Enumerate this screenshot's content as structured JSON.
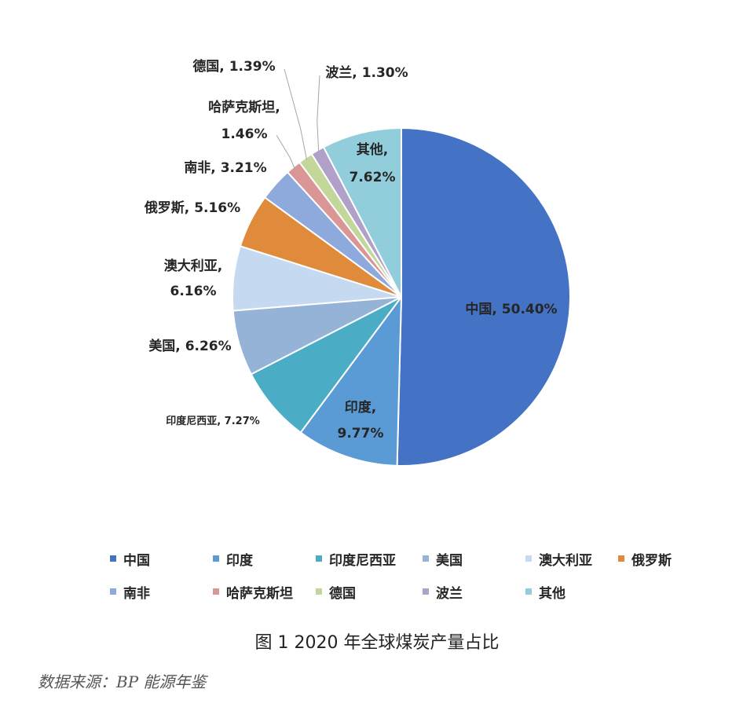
{
  "chart_data": {
    "type": "pie",
    "title": "",
    "slices": [
      {
        "name": "中国",
        "value": 50.4,
        "label": "中国, 50.40%",
        "color": "#4472C4"
      },
      {
        "name": "印度",
        "value": 9.77,
        "label_line1": "印度,",
        "label_line2": "9.77%",
        "color": "#5B9BD5"
      },
      {
        "name": "印度尼西亚",
        "value": 7.27,
        "label": "印度尼西亚, 7.27%",
        "color": "#4BACC6"
      },
      {
        "name": "美国",
        "value": 6.26,
        "label": "美国, 6.26%",
        "color": "#95B3D7"
      },
      {
        "name": "澳大利亚",
        "value": 6.16,
        "label_line1": "澳大利亚,",
        "label_line2": "6.16%",
        "color": "#C5D9F1"
      },
      {
        "name": "俄罗斯",
        "value": 5.16,
        "label": "俄罗斯, 5.16%",
        "color": "#E08A3C"
      },
      {
        "name": "南非",
        "value": 3.21,
        "label": "南非, 3.21%",
        "color": "#8EA9DB"
      },
      {
        "name": "哈萨克斯坦",
        "value": 1.46,
        "label_line1": "哈萨克斯坦,",
        "label_line2": "1.46%",
        "color": "#DA9694"
      },
      {
        "name": "德国",
        "value": 1.39,
        "label": "德国, 1.39%",
        "color": "#C4D79B"
      },
      {
        "name": "波兰",
        "value": 1.3,
        "label": "波兰, 1.30%",
        "color": "#B1A0C7"
      },
      {
        "name": "其他",
        "value": 7.62,
        "label_line1": "其他,",
        "label_line2": "7.62%",
        "color": "#92CDDC"
      }
    ],
    "legend_position": "bottom"
  },
  "legend": {
    "items": [
      "中国",
      "印度",
      "印度尼西亚",
      "美国",
      "澳大利亚",
      "俄罗斯",
      "南非",
      "哈萨克斯坦",
      "德国",
      "波兰",
      "其他"
    ]
  },
  "caption": "图 1 2020 年全球煤炭产量占比",
  "source": "数据来源：BP 能源年鉴"
}
